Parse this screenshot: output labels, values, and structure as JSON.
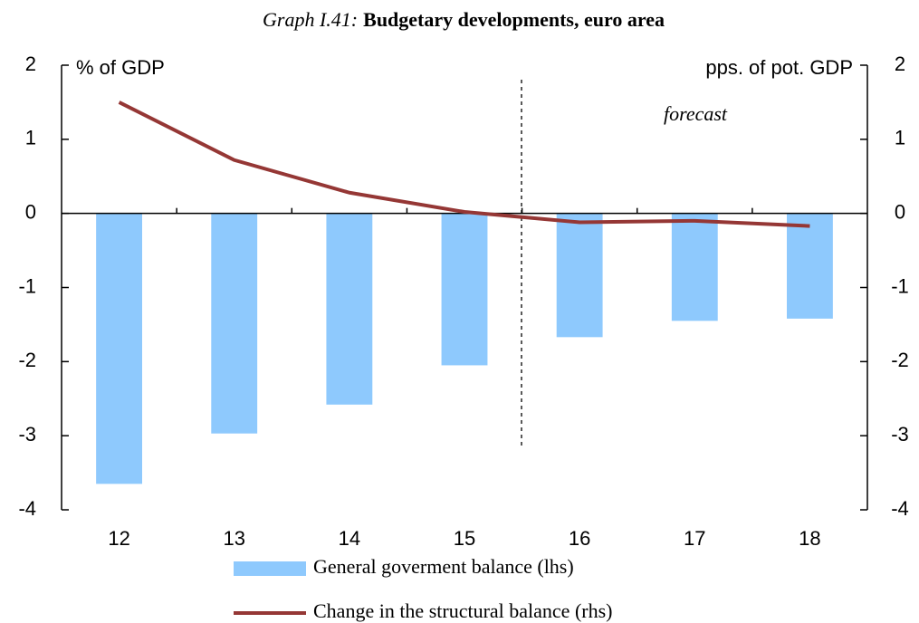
{
  "chart_data": {
    "type": "bar_line",
    "title_label": "Graph I.41:",
    "title": "Budgetary developments, euro area",
    "ylabel": "% of GDP",
    "y2label": "pps. of pot. GDP",
    "annotation": "forecast",
    "categories": [
      "12",
      "13",
      "14",
      "15",
      "16",
      "17",
      "18"
    ],
    "series": [
      {
        "name": "General goverment balance (lhs)",
        "type": "bar",
        "color": "#8ec9fd",
        "values": [
          -3.65,
          -2.97,
          -2.58,
          -2.05,
          -1.67,
          -1.45,
          -1.42
        ]
      },
      {
        "name": "Change in the structural balance (rhs)",
        "type": "line",
        "axis": "y2",
        "color": "#953735",
        "values": [
          1.5,
          0.72,
          0.28,
          0.02,
          -0.12,
          -0.1,
          -0.17
        ]
      }
    ],
    "ylim": [
      -4,
      2
    ],
    "yticks": [
      -4,
      -3,
      -2,
      -1,
      0,
      1,
      2
    ],
    "y2lim": [
      -4,
      2
    ],
    "y2ticks": [
      -4,
      -3,
      -2,
      -1,
      0,
      1,
      2
    ],
    "legend": "bottom"
  }
}
